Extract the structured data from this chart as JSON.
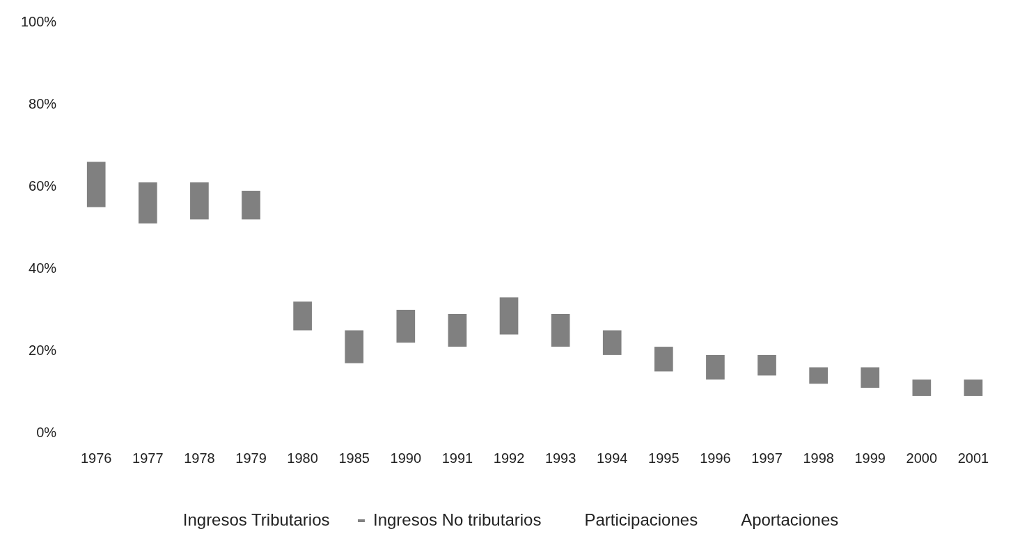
{
  "chart_data": {
    "type": "bar",
    "categories": [
      "1976",
      "1977",
      "1978",
      "1979",
      "1980",
      "1985",
      "1990",
      "1991",
      "1992",
      "1993",
      "1994",
      "1995",
      "1996",
      "1997",
      "1998",
      "1999",
      "2000",
      "2001"
    ],
    "series": [
      {
        "name": "Ingresos Tributarios",
        "values": [
          null,
          null,
          null,
          null,
          null,
          null,
          null,
          null,
          null,
          null,
          null,
          null,
          null,
          null,
          null,
          null,
          null,
          null
        ]
      },
      {
        "name": "Ingresos No tributarios",
        "color": "#808080",
        "values": [
          11,
          10,
          9,
          7,
          7,
          8,
          8,
          8,
          9,
          8,
          6,
          6,
          6,
          5,
          4,
          5,
          4,
          4
        ],
        "base": [
          55,
          51,
          52,
          52,
          25,
          17,
          22,
          21,
          24,
          21,
          19,
          15,
          13,
          14,
          12,
          11,
          9,
          9
        ]
      },
      {
        "name": "Participaciones",
        "values": [
          null,
          null,
          null,
          null,
          null,
          null,
          null,
          null,
          null,
          null,
          null,
          null,
          null,
          null,
          null,
          null,
          null,
          null
        ]
      },
      {
        "name": "Aportaciones",
        "values": [
          null,
          null,
          null,
          null,
          null,
          null,
          null,
          null,
          null,
          null,
          null,
          null,
          null,
          null,
          null,
          null,
          null,
          null
        ]
      }
    ],
    "ylim": [
      0,
      100
    ],
    "yticks": [
      {
        "value": 0,
        "label": "0%"
      },
      {
        "value": 20,
        "label": "20%"
      },
      {
        "value": 40,
        "label": "40%"
      },
      {
        "value": 60,
        "label": "60%"
      },
      {
        "value": 80,
        "label": "80%"
      },
      {
        "value": 100,
        "label": "100%"
      }
    ],
    "grid": false,
    "legend": "bottom"
  }
}
